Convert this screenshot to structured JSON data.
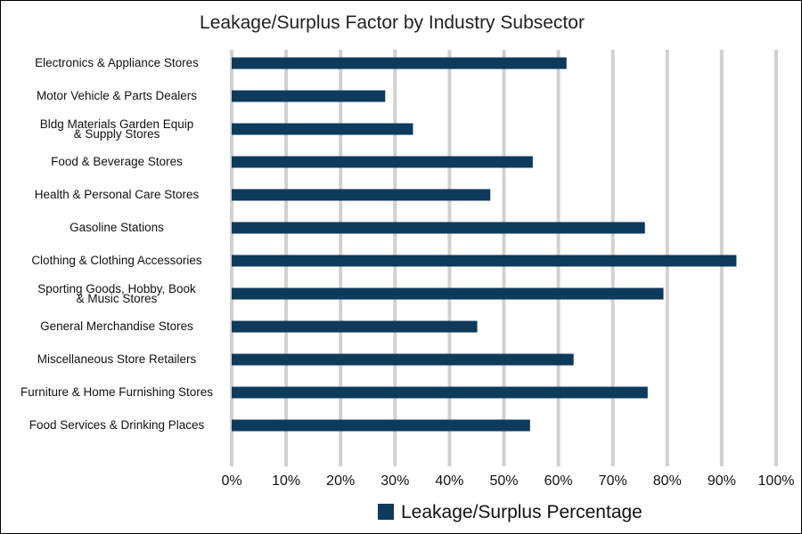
{
  "chart_data": {
    "type": "bar",
    "orientation": "horizontal",
    "title": "Leakage/Surplus Factor by Industry Subsector",
    "xlabel": "",
    "ylabel": "",
    "xlim": [
      0,
      100
    ],
    "x_ticks": [
      "0%",
      "10%",
      "20%",
      "30%",
      "40%",
      "50%",
      "60%",
      "70%",
      "80%",
      "90%",
      "100%"
    ],
    "grid": "vertical",
    "legend_position": "bottom",
    "colors": {
      "bar": "#0e3a5c",
      "grid": "#d4d0d0",
      "border": "#000000"
    },
    "categories": [
      "Electronics & Appliance Stores",
      "Motor Vehicle & Parts Dealers",
      "Bldg Materials Garden Equip\n& Supply Stores",
      "Food & Beverage Stores",
      "Health & Personal Care Stores",
      "Gasoline Stations",
      "Clothing & Clothing Accessories",
      "Sporting Goods, Hobby, Book\n& Music Stores",
      "General Merchandise Stores",
      "Miscellaneous Store Retailers",
      "Furniture & Home Furnishing Stores",
      "Food Services & Drinking Places"
    ],
    "series": [
      {
        "name": "Leakage/Surplus Percentage",
        "values": [
          61.5,
          28.2,
          33.3,
          55.3,
          47.5,
          75.9,
          92.7,
          79.3,
          45.1,
          62.8,
          76.4,
          54.8
        ]
      }
    ]
  }
}
